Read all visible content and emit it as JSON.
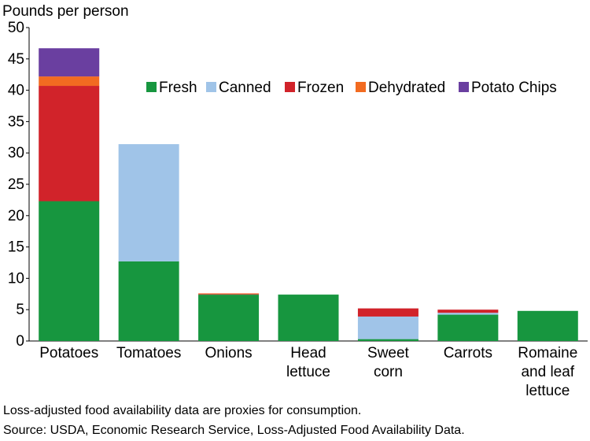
{
  "chart_data": {
    "type": "bar",
    "stacked": true,
    "ylabel": "Pounds per person",
    "xlabel": "",
    "ylim": [
      0,
      50
    ],
    "yticks": [
      0,
      5,
      10,
      15,
      20,
      25,
      30,
      35,
      40,
      45,
      50
    ],
    "grid": false,
    "legend_position": "upper-right",
    "categories": [
      [
        "Potatoes"
      ],
      [
        "Tomatoes"
      ],
      [
        "Onions"
      ],
      [
        "Head",
        "lettuce"
      ],
      [
        "Sweet",
        "corn"
      ],
      [
        "Carrots"
      ],
      [
        "Romaine",
        "and leaf",
        "lettuce"
      ]
    ],
    "series": [
      {
        "name": "Fresh",
        "color": "#17963f",
        "values": [
          22.3,
          12.7,
          7.4,
          7.4,
          0.3,
          4.2,
          4.8
        ]
      },
      {
        "name": "Canned",
        "color": "#a0c4e8",
        "values": [
          0,
          18.7,
          0,
          0,
          3.6,
          0.3,
          0
        ]
      },
      {
        "name": "Frozen",
        "color": "#d1232a",
        "values": [
          18.4,
          0,
          0.1,
          0,
          1.3,
          0.5,
          0
        ]
      },
      {
        "name": "Dehydrated",
        "color": "#f26b21",
        "values": [
          1.5,
          0,
          0.1,
          0,
          0,
          0,
          0
        ]
      },
      {
        "name": "Potato Chips",
        "color": "#6a3fa0",
        "values": [
          4.5,
          0,
          0,
          0,
          0,
          0,
          0
        ]
      }
    ]
  },
  "notes": {
    "line1": "Loss-adjusted food availability data are proxies for consumption.",
    "line2": "Source: USDA, Economic Research Service, Loss-Adjusted Food Availability Data."
  }
}
